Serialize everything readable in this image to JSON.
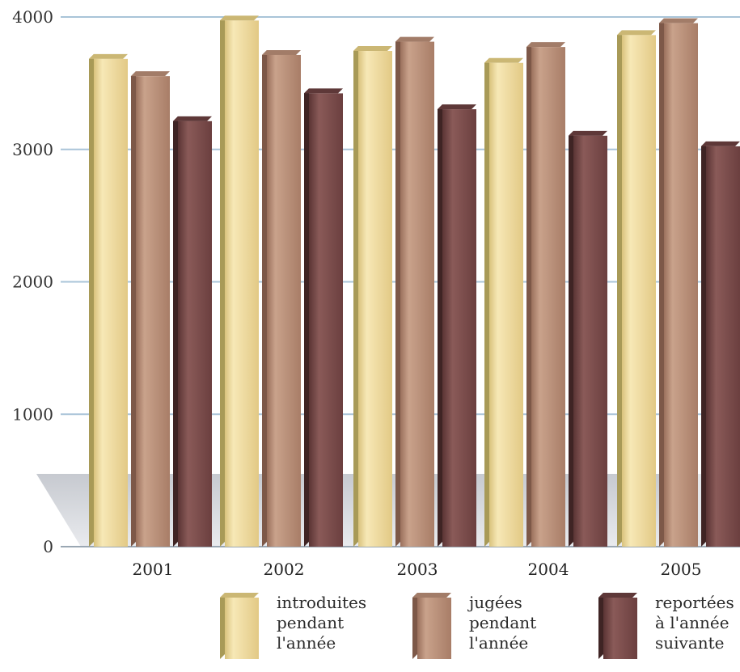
{
  "chart_data": {
    "type": "bar",
    "categories": [
      "2001",
      "2002",
      "2003",
      "2004",
      "2005"
    ],
    "series": [
      {
        "name": "introduites pendant l'année",
        "values": [
          3720,
          4010,
          3780,
          3690,
          3900
        ]
      },
      {
        "name": "jugées pendant l'année",
        "values": [
          3590,
          3750,
          3850,
          3810,
          3990
        ]
      },
      {
        "name": "reportées à l'année suivante",
        "values": [
          3250,
          3460,
          3340,
          3140,
          3060
        ]
      }
    ],
    "yticks": [
      "0",
      "1000",
      "2000",
      "3000",
      "4000"
    ],
    "ylim": [
      0,
      4000
    ],
    "grid": true,
    "legend_position": "bottom",
    "title": "",
    "xlabel": "",
    "ylabel": "",
    "colors": [
      "#eed99a",
      "#b88e78",
      "#7a4b4b"
    ]
  },
  "legend": [
    {
      "lines": [
        "introduites",
        "pendant",
        "l'année"
      ]
    },
    {
      "lines": [
        "jugées",
        "pendant",
        "l'année"
      ]
    },
    {
      "lines": [
        "reportées",
        "à l'année",
        "suivante"
      ]
    }
  ]
}
